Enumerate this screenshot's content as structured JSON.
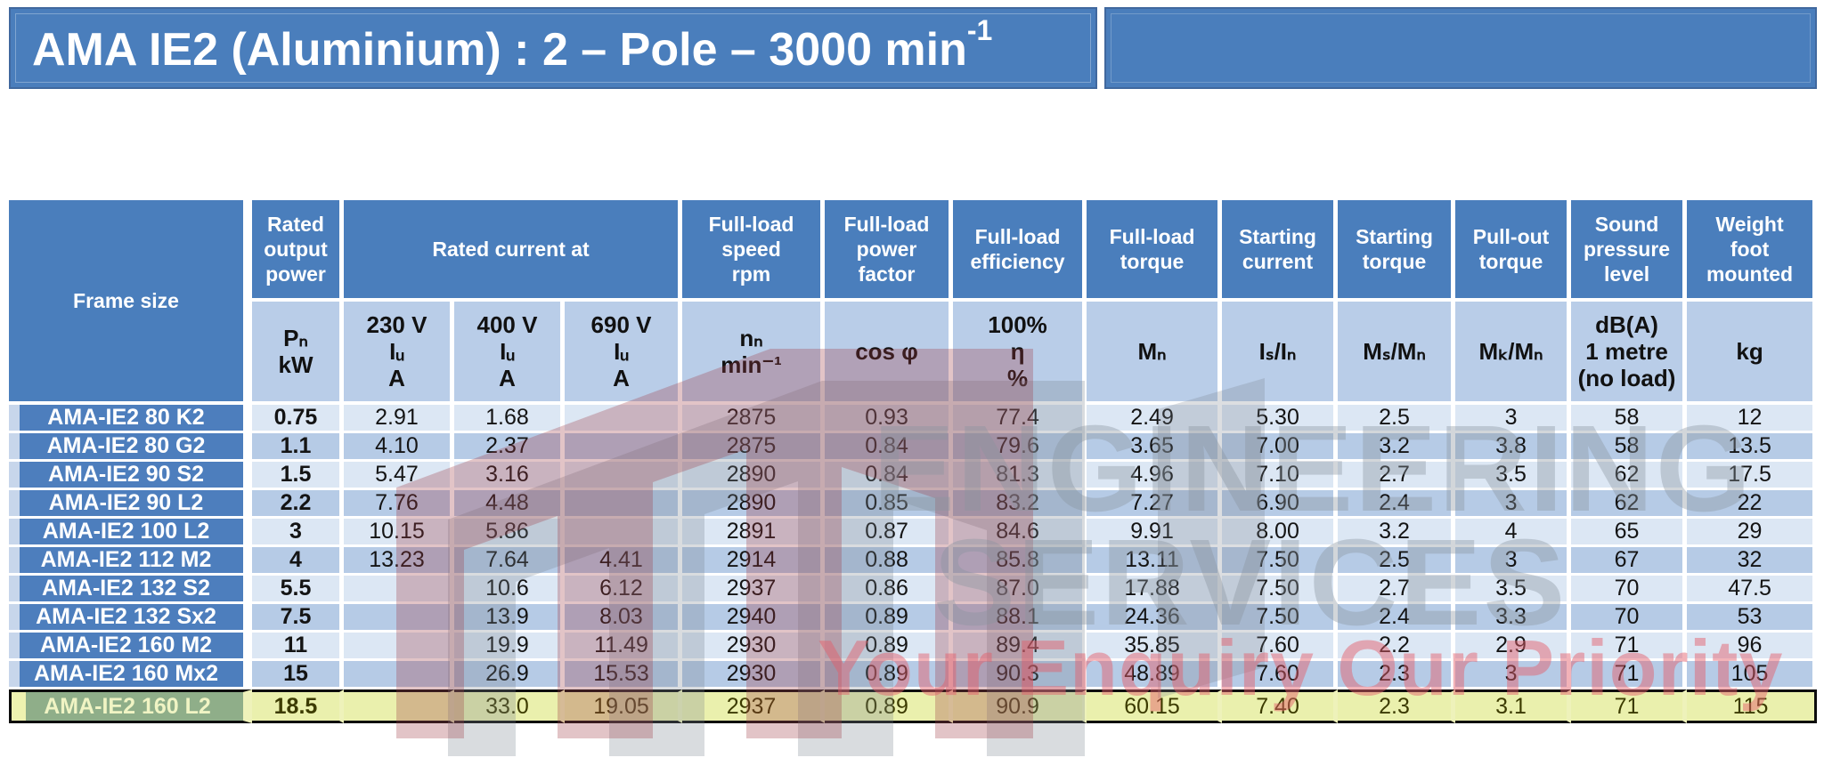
{
  "title_bar": {
    "text": "AMA IE2 (Aluminium) : 2 – Pole – 3000 min",
    "exponent": "-1"
  },
  "watermark": {
    "line1": "ENGINEERING",
    "line2": "SERVICES",
    "tagline": "Your Enquiry Our Priority",
    "logo_red": "#9e3a44",
    "logo_gray": "#78808c"
  },
  "colors": {
    "header_blue": "#4a7ebc",
    "subheader_blue": "#b9cde8",
    "row_light": "#dce7f4",
    "row_dark": "#b6cbe6",
    "highlight_yellow": "#eaf0ad",
    "highlight_frame_green": "#8fae89"
  },
  "table": {
    "frame_header": "Frame size",
    "group_headers": [
      "Rated\noutput\npower",
      "Rated current at",
      "Full-load\nspeed\nrpm",
      "Full-load\npower\nfactor",
      "Full-load\nefficiency",
      "Full-load\ntorque",
      "Starting\ncurrent",
      "Starting\ntorque",
      "Pull-out\ntorque",
      "Sound\npressure\nlevel",
      "Weight\nfoot\nmounted"
    ],
    "unit_headers": [
      "Pₙ\nkW",
      "230 V\nIᵤ\nA",
      "400 V\nIᵤ\nA",
      "690 V\nIᵤ\nA",
      "nₙ\nmin⁻¹",
      "cos φ",
      "100%\nη\n%",
      "Mₙ",
      "Iₛ/Iₙ",
      "Mₛ/Mₙ",
      "Mₖ/Mₙ",
      "dB(A)\n1 metre\n(no load)",
      "kg"
    ],
    "highlight_row_index": 10,
    "rows": [
      [
        "AMA-IE2 80 K2",
        "0.75",
        "2.91",
        "1.68",
        "",
        "2875",
        "0.93",
        "77.4",
        "2.49",
        "5.30",
        "2.5",
        "3",
        "58",
        "12"
      ],
      [
        "AMA-IE2 80 G2",
        "1.1",
        "4.10",
        "2.37",
        "",
        "2875",
        "0.84",
        "79.6",
        "3.65",
        "7.00",
        "3.2",
        "3.8",
        "58",
        "13.5"
      ],
      [
        "AMA-IE2 90 S2",
        "1.5",
        "5.47",
        "3.16",
        "",
        "2890",
        "0.84",
        "81.3",
        "4.96",
        "7.10",
        "2.7",
        "3.5",
        "62",
        "17.5"
      ],
      [
        "AMA-IE2 90 L2",
        "2.2",
        "7.76",
        "4.48",
        "",
        "2890",
        "0.85",
        "83.2",
        "7.27",
        "6.90",
        "2.4",
        "3",
        "62",
        "22"
      ],
      [
        "AMA-IE2 100 L2",
        "3",
        "10.15",
        "5.86",
        "",
        "2891",
        "0.87",
        "84.6",
        "9.91",
        "8.00",
        "3.2",
        "4",
        "65",
        "29"
      ],
      [
        "AMA-IE2 112 M2",
        "4",
        "13.23",
        "7.64",
        "4.41",
        "2914",
        "0.88",
        "85.8",
        "13.11",
        "7.50",
        "2.5",
        "3",
        "67",
        "32"
      ],
      [
        "AMA-IE2 132 S2",
        "5.5",
        "",
        "10.6",
        "6.12",
        "2937",
        "0.86",
        "87.0",
        "17.88",
        "7.50",
        "2.7",
        "3.5",
        "70",
        "47.5"
      ],
      [
        "AMA-IE2 132 Sx2",
        "7.5",
        "",
        "13.9",
        "8.03",
        "2940",
        "0.89",
        "88.1",
        "24.36",
        "7.50",
        "2.4",
        "3.3",
        "70",
        "53"
      ],
      [
        "AMA-IE2 160 M2",
        "11",
        "",
        "19.9",
        "11.49",
        "2930",
        "0.89",
        "89.4",
        "35.85",
        "7.60",
        "2.2",
        "2.9",
        "71",
        "96"
      ],
      [
        "AMA-IE2 160 Mx2",
        "15",
        "",
        "26.9",
        "15.53",
        "2930",
        "0.89",
        "90.3",
        "48.89",
        "7.60",
        "2.3",
        "3",
        "71",
        "105"
      ],
      [
        "AMA-IE2 160 L2",
        "18.5",
        "",
        "33.0",
        "19.05",
        "2937",
        "0.89",
        "90.9",
        "60.15",
        "7.40",
        "2.3",
        "3.1",
        "71",
        "115"
      ]
    ]
  }
}
